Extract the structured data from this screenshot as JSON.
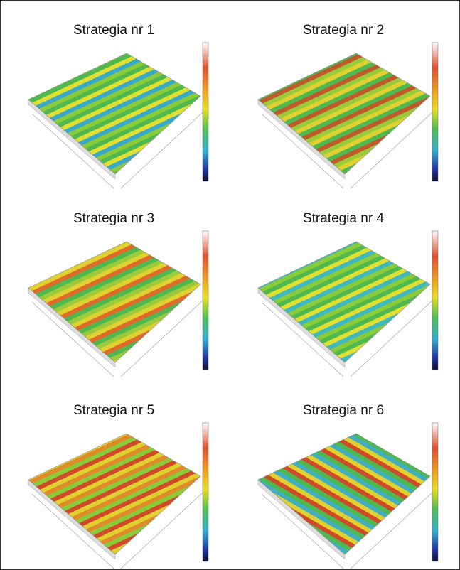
{
  "panels": [
    {
      "title": "Strategia nr 1"
    },
    {
      "title": "Strategia nr 2"
    },
    {
      "title": "Strategia nr 3"
    },
    {
      "title": "Strategia nr 4"
    },
    {
      "title": "Strategia nr 5"
    },
    {
      "title": "Strategia nr 6"
    }
  ]
}
